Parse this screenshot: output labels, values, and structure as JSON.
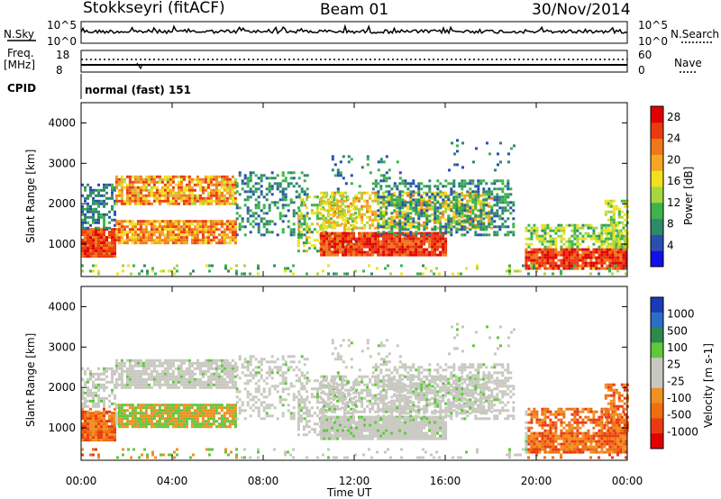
{
  "header": {
    "station": "Stokkseyri (fitACF)",
    "beam": "Beam 01",
    "date": "30/Nov/2014"
  },
  "top_panels": {
    "nsky_label": "N.Sky",
    "nsky_ticks": [
      "10^5",
      "10^0"
    ],
    "nsearch_label": "N.Search",
    "nsearch_ticks": [
      "10^5",
      "10^0"
    ],
    "freq_label_1": "Freq.",
    "freq_label_2": "[MHz]",
    "freq_ticks": [
      "18",
      "8"
    ],
    "nave_label": "Nave",
    "nave_ticks": [
      "60",
      "0"
    ],
    "cpid_label": "CPID",
    "cpid_value": "normal (fast) 151"
  },
  "colors": {
    "power_scale": [
      "#1010e8",
      "#2a4fb0",
      "#2e8a6a",
      "#3cb44b",
      "#a6d640",
      "#f0e020",
      "#f5a623",
      "#f07818",
      "#ec3a10",
      "#e00000"
    ],
    "velocity_scale": [
      "#1a3ab8",
      "#2a6ec8",
      "#2e8a4a",
      "#5fc83c",
      "#c8c8c0",
      "#c8c8c0",
      "#f09020",
      "#ee6e10",
      "#ec3a10",
      "#e00000"
    ]
  },
  "chart_data": [
    {
      "type": "heatmap",
      "name": "power",
      "ylabel": "Slant Range [km]",
      "yticks": [
        "4000",
        "3000",
        "2000",
        "1000"
      ],
      "ylim": [
        200,
        4500
      ],
      "xlim_hours": [
        0,
        24
      ],
      "xticks": [
        "00:00",
        "04:00",
        "08:00",
        "12:00",
        "16:00",
        "20:00",
        "00:00"
      ],
      "colorbar_label": "Power [dB]",
      "colorbar_ticks": [
        "28",
        "24",
        "20",
        "16",
        "12",
        "8",
        "4"
      ],
      "colorbar_range": [
        0,
        30
      ]
    },
    {
      "type": "heatmap",
      "name": "velocity",
      "ylabel": "Slant Range [km]",
      "yticks": [
        "4000",
        "3000",
        "2000",
        "1000"
      ],
      "ylim": [
        200,
        4500
      ],
      "xlim_hours": [
        0,
        24
      ],
      "xticks": [
        "00:00",
        "04:00",
        "08:00",
        "12:00",
        "16:00",
        "20:00",
        "00:00"
      ],
      "xlabel": "Time UT",
      "colorbar_label": "Velocity [m s-1]",
      "colorbar_ticks": [
        "1000",
        "500",
        "100",
        "25",
        "-25",
        "-100",
        "-500",
        "-1000"
      ]
    }
  ]
}
